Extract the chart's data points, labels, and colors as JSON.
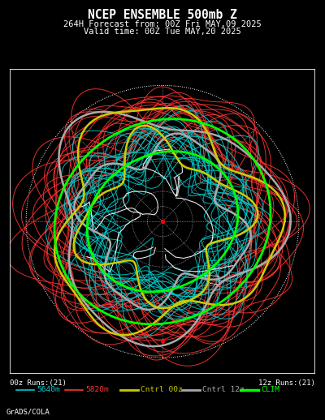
{
  "title_line1": "NCEP ENSEMBLE 500mb Z",
  "title_line2": "264H Forecast from: 00Z Fri MAY,09 2025",
  "title_line3": "Valid time: 00Z Tue MAY,20 2025",
  "background_color": "#000000",
  "text_color": "#ffffff",
  "border_color": "#ffffff",
  "legend_items": [
    {
      "label": "5640m",
      "color": "#00cccc",
      "lw": 1.2
    },
    {
      "label": "5820m",
      "color": "#ff3333",
      "lw": 1.2
    },
    {
      "label": "Cntrl 00z",
      "color": "#cccc00",
      "lw": 2.0
    },
    {
      "label": "Cntrl 12z",
      "color": "#aaaaaa",
      "lw": 2.0
    },
    {
      "label": "CLIM",
      "color": "#00ff00",
      "lw": 2.5
    }
  ],
  "left_label": "00z Runs:(21)",
  "right_label": "12z Runs:(21)",
  "grads_label": "GrADS/COLA",
  "num_cyan_members": 21,
  "num_red_members": 21,
  "dotted_ring_color": "#ffffff",
  "land_color": "#ffffff",
  "center_dot_color": "#ff0000",
  "cyan_base_r": 0.55,
  "cyan_spread": 0.15,
  "red_base_r": 0.78,
  "red_spread": 0.15
}
